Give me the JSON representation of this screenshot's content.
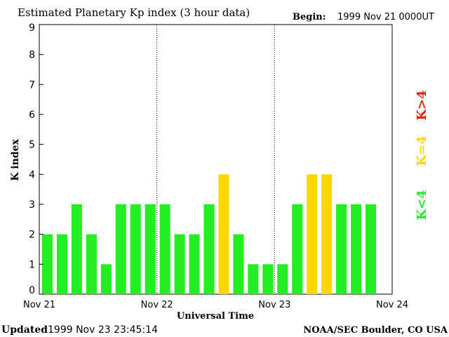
{
  "header": {
    "title": "Estimated Planetary Kp index (3 hour data)",
    "begin_label": "Begin:",
    "begin_value": "1999 Nov 21 0000UT"
  },
  "footer": {
    "updated_label": "Updated",
    "updated_value": "1999 Nov 23 23:45:14",
    "credit": "NOAA/SEC Boulder, CO USA"
  },
  "legend": {
    "high": "K>4",
    "equal": "K=4",
    "low": "K<4"
  },
  "colors": {
    "low": "#22ee22",
    "equal": "#ffd700",
    "high": "#ee2200",
    "axis": "#000000",
    "divider": "#000000"
  },
  "chart_data": {
    "type": "bar",
    "title": "Estimated Planetary Kp index (3 hour data)",
    "xlabel": "Universal Time",
    "ylabel": "K index",
    "ylim": [
      0,
      9
    ],
    "yticks": [
      0,
      1,
      2,
      3,
      4,
      5,
      6,
      7,
      8,
      9
    ],
    "x_tick_labels": [
      "Nov 21",
      "Nov 22",
      "Nov 23",
      "Nov 24"
    ],
    "bars_per_day": 8,
    "series": [
      {
        "name": "Kp",
        "values": [
          2,
          2,
          3,
          2,
          1,
          3,
          3,
          3,
          3,
          2,
          2,
          3,
          4,
          2,
          1,
          1,
          1,
          3,
          4,
          4,
          3,
          3,
          3
        ]
      }
    ],
    "grid": false,
    "legend_position": "right"
  }
}
